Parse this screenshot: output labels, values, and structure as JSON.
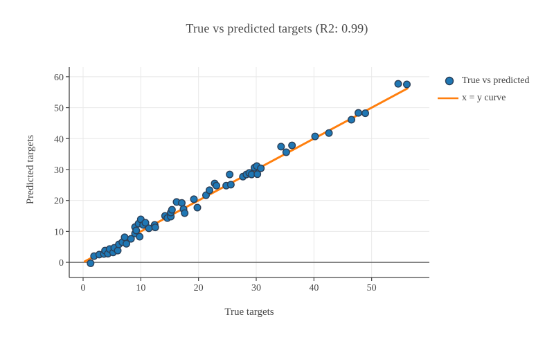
{
  "title": "True vs predicted targets (R2: 0.99)",
  "legend": {
    "scatter_label": "True vs predicted",
    "line_label": "x = y curve"
  },
  "colors": {
    "marker_fill": "#1f77b4",
    "marker_edge": "#2b3f57",
    "line": "#ff7f0e",
    "grid": "#e8e8e8",
    "axis_line": "#444444",
    "zero_line": "#565656",
    "tick_text": "#444444"
  },
  "chart_data": {
    "type": "scatter",
    "title": "True vs predicted targets (R2: 0.99)",
    "xlabel": "True targets",
    "ylabel": "Predicted targets",
    "xlim": [
      -2.4,
      60
    ],
    "ylim": [
      -4.9,
      63.1
    ],
    "xticks": [
      0,
      10,
      20,
      30,
      40,
      50
    ],
    "yticks": [
      0,
      10,
      20,
      30,
      40,
      50,
      60
    ],
    "grid": true,
    "legend_position": "right-outside",
    "zeroline_y": 0,
    "series": [
      {
        "name": "True vs predicted",
        "type": "markers",
        "color": "#1f77b4",
        "edge_color": "#2b3f57",
        "points": [
          [
            1.3,
            -0.3
          ],
          [
            1.9,
            2.0
          ],
          [
            2.8,
            2.5
          ],
          [
            3.6,
            2.7
          ],
          [
            3.8,
            3.8
          ],
          [
            4.3,
            2.8
          ],
          [
            4.6,
            4.3
          ],
          [
            5.2,
            3.2
          ],
          [
            5.4,
            4.7
          ],
          [
            6.0,
            3.8
          ],
          [
            6.2,
            5.8
          ],
          [
            6.8,
            6.5
          ],
          [
            7.2,
            8.1
          ],
          [
            7.5,
            6.0
          ],
          [
            8.3,
            7.6
          ],
          [
            9.0,
            9.3
          ],
          [
            9.0,
            11.4
          ],
          [
            9.2,
            10.3
          ],
          [
            9.6,
            12.5
          ],
          [
            9.8,
            8.3
          ],
          [
            10.0,
            13.9
          ],
          [
            10.4,
            12.1
          ],
          [
            10.8,
            12.8
          ],
          [
            11.4,
            11.0
          ],
          [
            12.4,
            12.1
          ],
          [
            12.5,
            11.3
          ],
          [
            14.2,
            15.0
          ],
          [
            14.6,
            14.3
          ],
          [
            15.2,
            14.8
          ],
          [
            15.2,
            16.1
          ],
          [
            15.4,
            17.0
          ],
          [
            16.2,
            19.5
          ],
          [
            17.1,
            19.2
          ],
          [
            17.4,
            17.2
          ],
          [
            17.6,
            15.9
          ],
          [
            19.2,
            20.4
          ],
          [
            19.8,
            17.7
          ],
          [
            21.3,
            21.7
          ],
          [
            21.9,
            23.3
          ],
          [
            22.8,
            25.5
          ],
          [
            23.1,
            24.8
          ],
          [
            24.8,
            24.8
          ],
          [
            25.4,
            28.4
          ],
          [
            25.6,
            25.1
          ],
          [
            27.7,
            27.7
          ],
          [
            28.3,
            28.4
          ],
          [
            28.8,
            28.9
          ],
          [
            29.2,
            28.4
          ],
          [
            29.7,
            30.6
          ],
          [
            30.1,
            31.1
          ],
          [
            30.2,
            28.5
          ],
          [
            30.8,
            30.4
          ],
          [
            34.3,
            37.4
          ],
          [
            35.2,
            35.6
          ],
          [
            36.2,
            37.8
          ],
          [
            40.2,
            40.7
          ],
          [
            42.6,
            41.8
          ],
          [
            46.5,
            46.1
          ],
          [
            47.7,
            48.3
          ],
          [
            48.9,
            48.2
          ],
          [
            54.6,
            57.7
          ],
          [
            56.1,
            57.5
          ]
        ]
      },
      {
        "name": "x = y curve",
        "type": "line",
        "color": "#ff7f0e",
        "points": [
          [
            0.3,
            0.3
          ],
          [
            56.2,
            56.2
          ]
        ]
      }
    ]
  }
}
